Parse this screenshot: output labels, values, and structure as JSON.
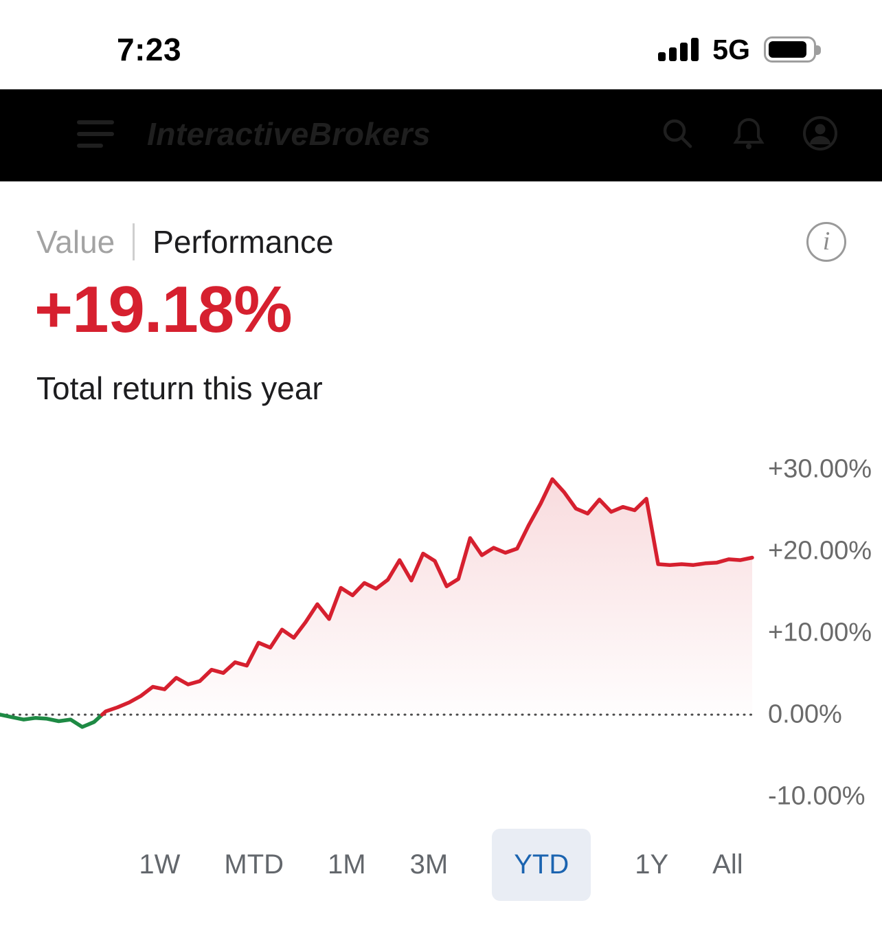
{
  "status_bar": {
    "time": "7:23",
    "network": "5G",
    "signal_bars": 4,
    "battery_level_percent": 88
  },
  "nav_bar": {
    "logo_text": "InteractiveBrokers"
  },
  "performance_header": {
    "tabs": [
      {
        "label": "Value",
        "selected": false
      },
      {
        "label": "Performance",
        "selected": true
      }
    ],
    "info_glyph": "i",
    "return_value": "+19.18%",
    "return_caption": "Total return this year"
  },
  "chart_data": {
    "type": "area",
    "title": "Total return this year",
    "series_name": "YTD total return (%)",
    "unit": "%",
    "final_value_percent": 19.18,
    "peak_value_percent": 28.8,
    "min_value_percent": -1.5,
    "ylim": [
      -13,
      33
    ],
    "grid": "dotted zero baseline only",
    "legend": "none",
    "y_ticks": [
      {
        "label": "+30.00%",
        "value": 30
      },
      {
        "label": "+20.00%",
        "value": 20
      },
      {
        "label": "+10.00%",
        "value": 10
      },
      {
        "label": "0.00%",
        "value": 0
      },
      {
        "label": "-10.00%",
        "value": -10
      }
    ],
    "values": [
      0.0,
      -0.3,
      -0.6,
      -0.4,
      -0.5,
      -0.8,
      -0.6,
      -1.5,
      -0.9,
      0.4,
      0.9,
      1.5,
      2.3,
      3.4,
      3.1,
      4.5,
      3.7,
      4.1,
      5.5,
      5.1,
      6.4,
      6.0,
      8.8,
      8.2,
      10.4,
      9.4,
      11.3,
      13.5,
      11.7,
      15.5,
      14.6,
      16.1,
      15.4,
      16.5,
      18.9,
      16.4,
      19.7,
      18.8,
      15.7,
      16.6,
      21.6,
      19.5,
      20.4,
      19.8,
      20.3,
      23.2,
      25.8,
      28.8,
      27.2,
      25.2,
      24.6,
      26.3,
      24.8,
      25.4,
      25.0,
      26.4,
      18.4,
      18.3,
      18.4,
      18.3,
      18.5,
      18.6,
      19.0,
      18.9,
      19.2
    ]
  },
  "range_selector": {
    "options": [
      "1W",
      "MTD",
      "1M",
      "3M",
      "YTD",
      "1Y",
      "All"
    ],
    "selected": "YTD",
    "selected_index": 4
  },
  "colors": {
    "positive_red": "#d6202f",
    "negative_green": "#1e8a44",
    "ytd_blue": "#1b64b0",
    "pill_bg": "#e9edf4",
    "tick_gray": "#6a6a6a",
    "muted_gray": "#a3a3a3",
    "zero_line": "#4a4a4a"
  }
}
